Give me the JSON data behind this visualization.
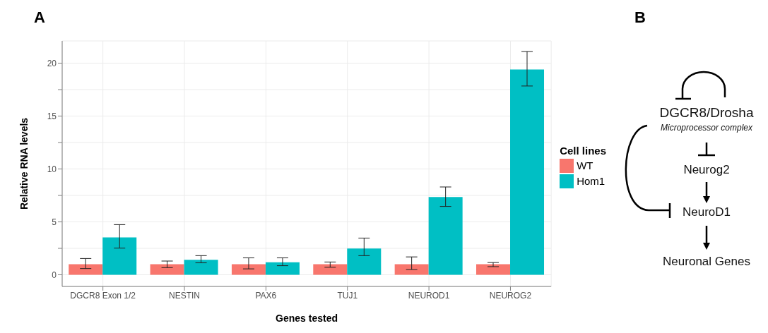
{
  "chart_data": [
    {
      "type": "bar",
      "title": "A",
      "xlabel": "Genes tested",
      "ylabel": "Relative RNA levels",
      "legend_title": "Cell lines",
      "categories": [
        "DGCR8 Exon 1/2",
        "NESTIN",
        "PAX6",
        "TUJ1",
        "NEUROD1",
        "NEUROG2"
      ],
      "series": [
        {
          "name": "WT",
          "color": "#f8766d",
          "values": [
            1,
            1,
            1,
            1,
            1,
            1
          ],
          "errors": [
            [
              0.59,
              1.54
            ],
            [
              0.68,
              1.3
            ],
            [
              0.56,
              1.6
            ],
            [
              0.71,
              1.21
            ],
            [
              0.5,
              1.69
            ],
            [
              0.77,
              1.16
            ]
          ]
        },
        {
          "name": "Hom1",
          "color": "#00bfc4",
          "values": [
            3.53,
            1.42,
            1.19,
            2.49,
            7.35,
            19.4
          ],
          "errors": [
            [
              2.52,
              4.74
            ],
            [
              1.13,
              1.81
            ],
            [
              0.86,
              1.6
            ],
            [
              1.81,
              3.47
            ],
            [
              6.46,
              8.3
            ],
            [
              17.84,
              21.1
            ]
          ]
        }
      ],
      "ylim": [
        -1.1,
        22.1
      ],
      "yticks": [
        0,
        {
          "value": 2.5,
          "label": null
        },
        5,
        {
          "value": 7.5,
          "label": null
        },
        10,
        {
          "value": 12.5,
          "label": null
        },
        15,
        {
          "value": 17.5,
          "label": null
        },
        20
      ],
      "grid": true,
      "legend": "right"
    },
    {
      "type": "other",
      "title": "B",
      "annotations": [
        "DGCR8/Drosha",
        "Microprocessor complex",
        "Neurog2",
        "NeuroD1",
        "Neuronal Genes"
      ]
    }
  ]
}
